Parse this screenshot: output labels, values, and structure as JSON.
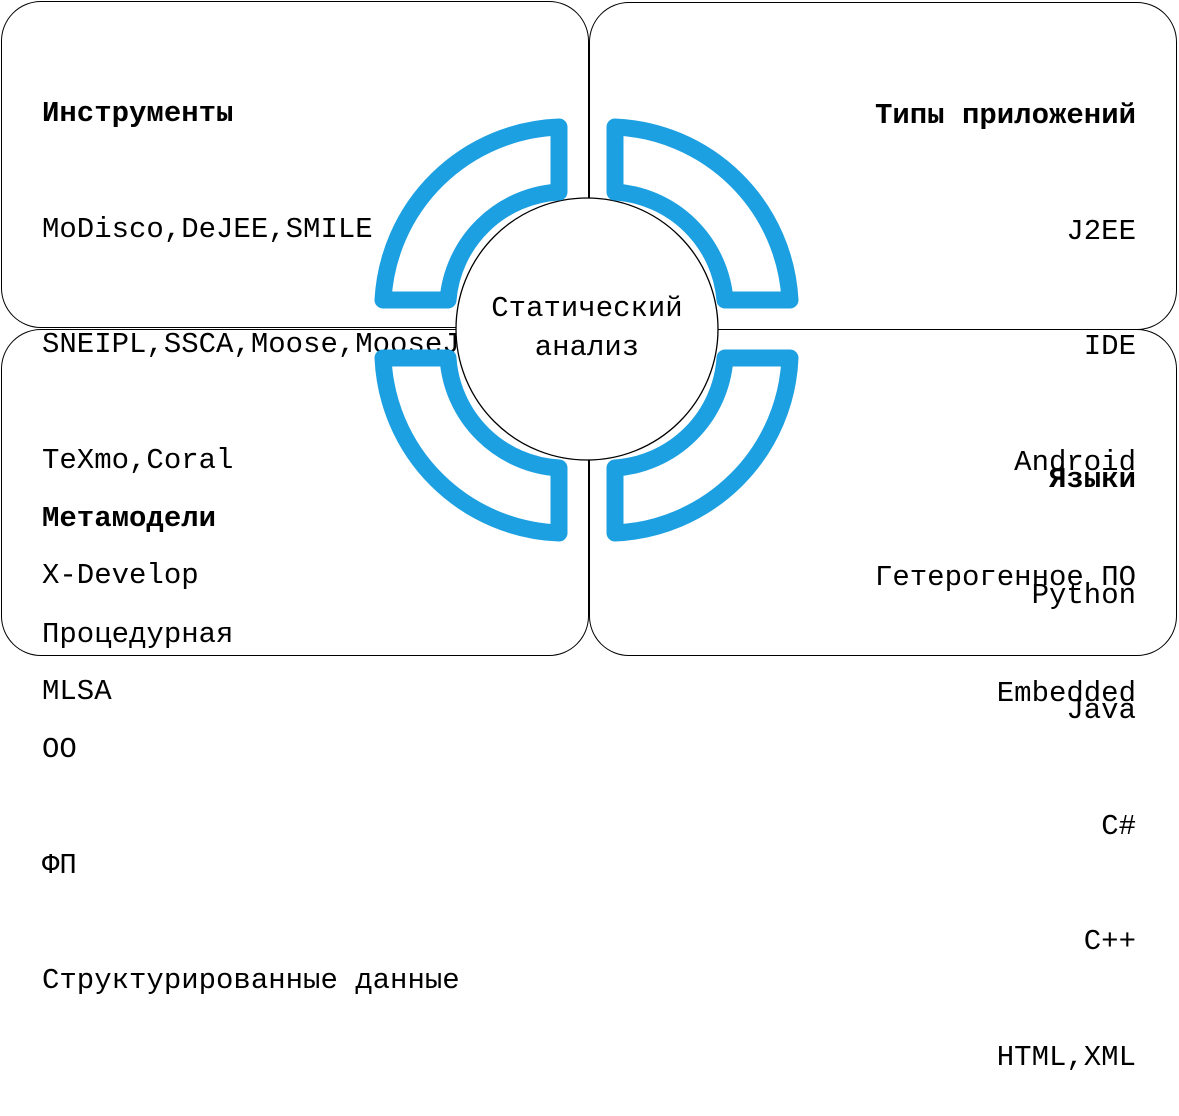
{
  "colors": {
    "accent": "#1ca0e2",
    "border": "#000000"
  },
  "center": {
    "line1": "Статический",
    "line2": "анализ"
  },
  "quadrants": {
    "tools": {
      "title": "Инструменты",
      "items": [
        "MoDisco,DeJEE,SMILE",
        "SNEIPL,SSCA,Moose,MooseJEE",
        "TeXmo,Coral",
        "X-Develop",
        "MLSA"
      ]
    },
    "app_types": {
      "title": "Типы приложений",
      "items": [
        "J2EE",
        "IDE",
        "Android",
        "Гетерогенное ПО",
        "Embedded"
      ]
    },
    "metamodels": {
      "title": "Метамодели",
      "items": [
        "Процедурная",
        "ОО",
        "ФП",
        "Структурированные данные"
      ]
    },
    "languages": {
      "title": "Языки",
      "items": [
        "Python",
        "Java",
        "C#",
        "C++",
        "HTML,XML"
      ]
    }
  }
}
